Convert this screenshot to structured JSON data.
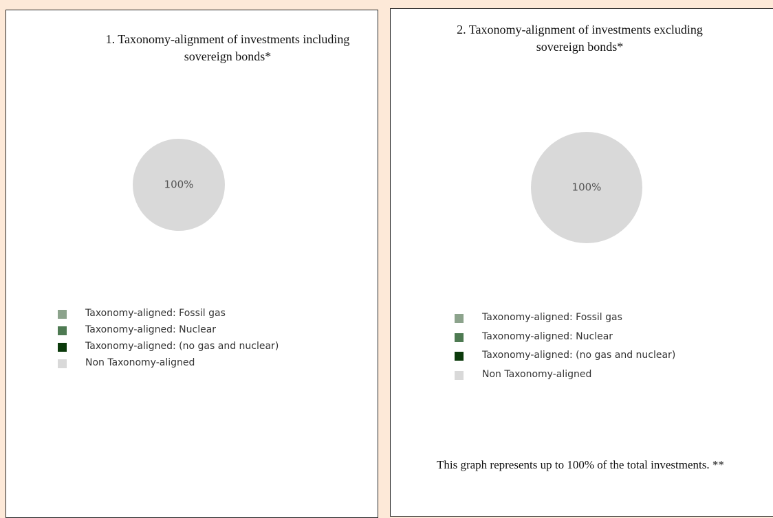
{
  "chart_data": [
    {
      "type": "pie",
      "title": "1. Taxonomy-alignment of investments including sovereign bonds*",
      "categories": [
        "Taxonomy-aligned: Fossil gas",
        "Taxonomy-aligned: Nuclear",
        "Taxonomy-aligned: (no gas and nuclear)",
        "Non Taxonomy-aligned"
      ],
      "values": [
        0,
        0,
        0,
        100
      ],
      "value_labels": [
        null,
        null,
        null,
        "100%"
      ],
      "colors": [
        "#8ca38c",
        "#4e7a52",
        "#0b3a0b",
        "#d9d9d9"
      ]
    },
    {
      "type": "pie",
      "title": "2. Taxonomy-alignment of investments excluding sovereign bonds*",
      "categories": [
        "Taxonomy-aligned: Fossil gas",
        "Taxonomy-aligned: Nuclear",
        "Taxonomy-aligned: (no gas and nuclear)",
        "Non Taxonomy-aligned"
      ],
      "values": [
        0,
        0,
        0,
        100
      ],
      "value_labels": [
        null,
        null,
        null,
        "100%"
      ],
      "colors": [
        "#8ca38c",
        "#4e7a52",
        "#0b3a0b",
        "#d9d9d9"
      ],
      "annotation": "This graph represents up to 100% of the total investments. **"
    }
  ]
}
